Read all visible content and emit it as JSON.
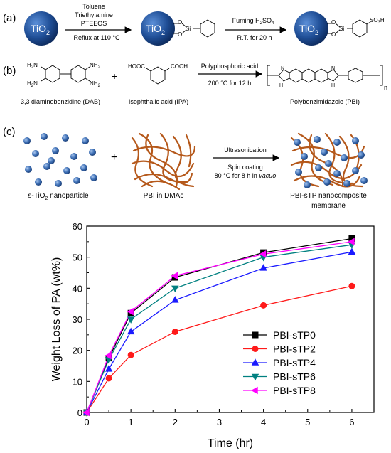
{
  "panel_a": {
    "label": "(a)",
    "sphere_label": "TiO",
    "sphere_sub": "2",
    "step1_reagents": [
      "Toluene",
      "Triethylamine",
      "PTEEOS"
    ],
    "step1_conditions": "Reflux at 110 °C",
    "step2_reagent": "Fuming H",
    "step2_reagent_sub": "2",
    "step2_reagent_tail": "SO",
    "step2_reagent_sub2": "4",
    "step2_conditions": "R.T. for 20 h",
    "atom_o": "O",
    "atom_si": "Si",
    "sulfonic": "SO",
    "sulfonic_sub": "3",
    "sulfonic_tail": "H"
  },
  "panel_b": {
    "label": "(b)",
    "dab_name": "3,3 diaminobenzidine (DAB)",
    "ipa_name": "Isophthalic acid (IPA)",
    "pbi_name": "Polybenzimidazole (PBI)",
    "plus": "+",
    "reagent": "Polyphosphoric acid",
    "conditions": "200 °C for 12 h",
    "nh2": "NH",
    "nh2_sub": "2",
    "h2n": "H",
    "h2n_sub": "2",
    "h2n_tail": "N",
    "hooc": "HOOC",
    "cooh": "COOH",
    "n": "N",
    "hn": "H",
    "subscript_n": "n"
  },
  "panel_c": {
    "label": "(c)",
    "plus": "+",
    "step1": "Ultrasonication",
    "step2": "Spin coating",
    "step3_a": "80 °C for 8 h in ",
    "step3_b": "vacuo",
    "np_label_a": "s-TiO",
    "np_label_sub": "2",
    "np_label_b": " nanoparticle",
    "pbi_label": "PBI in DMAc",
    "product_label_1": "PBI-sTP nanocomposite",
    "product_label_2": "membrane"
  },
  "colors": {
    "sphere": "#1f4e96",
    "fiber": "#b5581a",
    "nanoparticle": "#3d6fb5",
    "axis": "#000000"
  },
  "chart_data": {
    "type": "line",
    "xlabel": "Time (hr)",
    "ylabel": "Weight Loss of PA (wt%)",
    "xlim": [
      0,
      6.5
    ],
    "ylim": [
      0,
      60
    ],
    "xticks": [
      0,
      1,
      2,
      3,
      4,
      5,
      6
    ],
    "yticks": [
      0,
      10,
      20,
      30,
      40,
      50,
      60
    ],
    "grid": false,
    "legend_position": "bottom-right",
    "x": [
      0,
      0.5,
      1,
      2,
      4,
      6
    ],
    "series": [
      {
        "name": "PBI-sTP0",
        "color": "#000000",
        "marker": "square",
        "values": [
          0,
          17.5,
          32,
          43.5,
          51.5,
          56
        ]
      },
      {
        "name": "PBI-sTP2",
        "color": "#ff1a1a",
        "marker": "circle",
        "values": [
          0,
          11,
          18.5,
          26,
          34.5,
          40.7
        ]
      },
      {
        "name": "PBI-sTP4",
        "color": "#1a1aff",
        "marker": "triangle-up",
        "values": [
          0,
          14,
          26,
          36.2,
          46.5,
          51.7
        ]
      },
      {
        "name": "PBI-sTP6",
        "color": "#008080",
        "marker": "triangle-down",
        "values": [
          0,
          17,
          30,
          40,
          50,
          54
        ]
      },
      {
        "name": "PBI-sTP8",
        "color": "#ff00ff",
        "marker": "triangle-left",
        "values": [
          0,
          18.3,
          32.5,
          44,
          51,
          55
        ]
      }
    ]
  }
}
